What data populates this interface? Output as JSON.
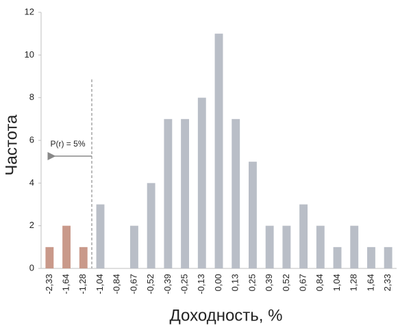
{
  "chart_data": {
    "type": "bar",
    "x_label": "Доходность, %",
    "y_label": "Частота",
    "annotation": "P(r) = 5%",
    "categories": [
      "-2,33",
      "-1,64",
      "-1,28",
      "-1,04",
      "-0,84",
      "-0,67",
      "-0,52",
      "-0,39",
      "-0,25",
      "-0,13",
      "0,00",
      "0,13",
      "0,25",
      "0,39",
      "0,52",
      "0,67",
      "0,84",
      "1,04",
      "1,28",
      "1,64",
      "2,33"
    ],
    "values": [
      1,
      2,
      1,
      3,
      0,
      2,
      4,
      7,
      7,
      8,
      11,
      7,
      5,
      2,
      2,
      3,
      2,
      1,
      2,
      1,
      1
    ],
    "colors": [
      "#c9998a",
      "#c9998a",
      "#c9998a",
      "#b9bec7",
      "#b9bec7",
      "#b9bec7",
      "#b9bec7",
      "#b9bec7",
      "#b9bec7",
      "#b9bec7",
      "#b9bec7",
      "#b9bec7",
      "#b9bec7",
      "#b9bec7",
      "#b9bec7",
      "#b9bec7",
      "#b9bec7",
      "#b9bec7",
      "#b9bec7",
      "#b9bec7",
      "#b9bec7"
    ],
    "ylim": [
      0,
      12
    ],
    "yticks": [
      0,
      2,
      4,
      6,
      8,
      10,
      12
    ],
    "grid": false
  }
}
